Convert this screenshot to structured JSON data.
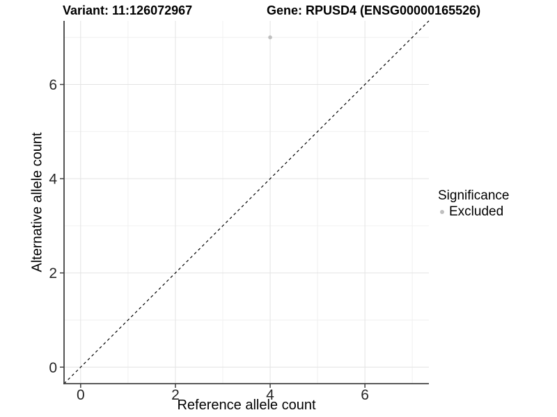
{
  "chart_data": {
    "type": "scatter",
    "title_left": "Variant: 11:126072967",
    "title_right": "Gene: RPUSD4 (ENSG00000165526)",
    "xlabel": "Reference allele count",
    "ylabel": "Alternative allele count",
    "xlim": [
      -0.35,
      7.35
    ],
    "ylim": [
      -0.35,
      7.35
    ],
    "xticks": [
      0,
      2,
      4,
      6
    ],
    "yticks": [
      0,
      2,
      4,
      6
    ],
    "xminor": [
      1,
      3,
      5,
      7
    ],
    "yminor": [
      1,
      3,
      5,
      7
    ],
    "grid": "major+minor",
    "legend": {
      "position": "right",
      "title": "Significance",
      "items": [
        {
          "label": "Excluded",
          "color": "#bfbfbf"
        }
      ]
    },
    "points": [
      {
        "x": 4,
        "y": 7,
        "series": "Excluded"
      }
    ],
    "reference_line": {
      "kind": "identity",
      "from": -0.35,
      "to": 7.35,
      "style": "dashed",
      "color": "#000000"
    },
    "colors": {
      "background": "#ffffff",
      "grid_major": "#e3e3e3",
      "grid_minor": "#f0f0f0",
      "axis_line": "#404040",
      "tick_text": "#262626",
      "point": "#bfbfbf"
    }
  }
}
